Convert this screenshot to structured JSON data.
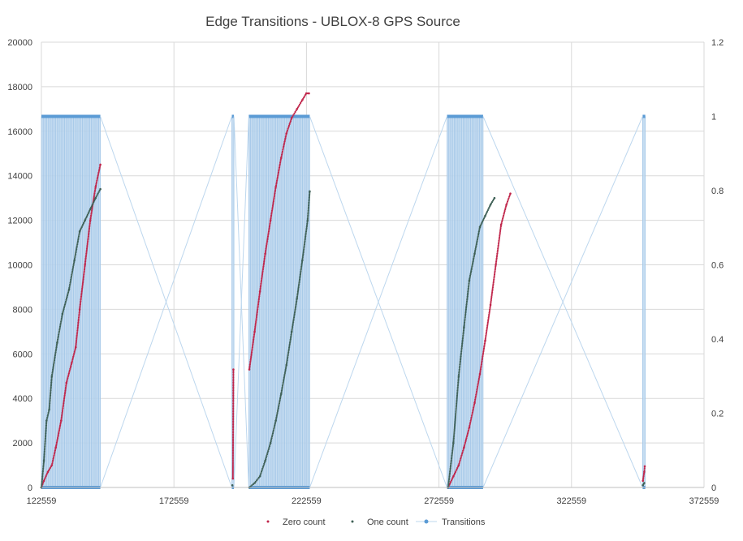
{
  "chart_data": {
    "type": "scatter",
    "title": "Edge Transitions - UBLOX-8 GPS Source",
    "xlabel": "",
    "ylabel": "",
    "y2label": "",
    "xlim": [
      122559,
      372559
    ],
    "ylim": [
      0,
      20000
    ],
    "y2lim": [
      0,
      1.2
    ],
    "x_ticks": [
      "122559",
      "172559",
      "222559",
      "272559",
      "322559",
      "372559"
    ],
    "y_ticks": [
      "0",
      "2000",
      "4000",
      "6000",
      "8000",
      "10000",
      "12000",
      "14000",
      "16000",
      "18000",
      "20000"
    ],
    "y2_ticks": [
      "0",
      "0.2",
      "0.4",
      "0.6",
      "0.8",
      "1",
      "1.2"
    ],
    "grid": true,
    "legend_position": "bottom",
    "series": [
      {
        "name": "Zero count",
        "color": "#c0254a",
        "axis": "left",
        "points": [
          [
            122559,
            0
          ],
          [
            123500,
            300
          ],
          [
            125000,
            700
          ],
          [
            126500,
            1000
          ],
          [
            128000,
            1800
          ],
          [
            130000,
            3000
          ],
          [
            132000,
            4700
          ],
          [
            134000,
            5600
          ],
          [
            135500,
            6300
          ],
          [
            137000,
            8000
          ],
          [
            139000,
            10000
          ],
          [
            141000,
            12000
          ],
          [
            143000,
            13500
          ],
          [
            144800,
            14500
          ],
          [
            194800,
            400
          ],
          [
            195000,
            5300
          ],
          [
            201000,
            5300
          ],
          [
            203000,
            7000
          ],
          [
            205000,
            8800
          ],
          [
            207000,
            10500
          ],
          [
            209000,
            12000
          ],
          [
            211000,
            13500
          ],
          [
            213000,
            14800
          ],
          [
            215000,
            15900
          ],
          [
            217000,
            16600
          ],
          [
            219000,
            17000
          ],
          [
            221000,
            17400
          ],
          [
            222500,
            17700
          ],
          [
            223500,
            17700
          ],
          [
            276000,
            0
          ],
          [
            278000,
            500
          ],
          [
            280000,
            1000
          ],
          [
            282000,
            1800
          ],
          [
            284000,
            2700
          ],
          [
            286000,
            3800
          ],
          [
            288000,
            5100
          ],
          [
            290000,
            6600
          ],
          [
            292000,
            8200
          ],
          [
            294000,
            10000
          ],
          [
            296000,
            11800
          ],
          [
            298000,
            12700
          ],
          [
            299500,
            13200
          ],
          [
            349500,
            300
          ],
          [
            350000,
            700
          ],
          [
            350200,
            950
          ]
        ]
      },
      {
        "name": "One count",
        "color": "#3f6056",
        "axis": "left",
        "points": [
          [
            122559,
            0
          ],
          [
            123500,
            1200
          ],
          [
            124500,
            3000
          ],
          [
            125500,
            3500
          ],
          [
            126500,
            5000
          ],
          [
            128500,
            6500
          ],
          [
            130500,
            7800
          ],
          [
            133000,
            8900
          ],
          [
            135000,
            10200
          ],
          [
            137000,
            11500
          ],
          [
            139000,
            12000
          ],
          [
            141000,
            12500
          ],
          [
            143000,
            13000
          ],
          [
            144800,
            13400
          ],
          [
            194600,
            100
          ],
          [
            201000,
            0
          ],
          [
            203000,
            200
          ],
          [
            205000,
            500
          ],
          [
            207000,
            1200
          ],
          [
            209000,
            2000
          ],
          [
            211000,
            3000
          ],
          [
            213000,
            4200
          ],
          [
            215000,
            5500
          ],
          [
            217000,
            7000
          ],
          [
            219000,
            8500
          ],
          [
            221000,
            10200
          ],
          [
            223000,
            12000
          ],
          [
            223800,
            13300
          ],
          [
            276000,
            0
          ],
          [
            278000,
            2000
          ],
          [
            280000,
            5000
          ],
          [
            282000,
            7200
          ],
          [
            284000,
            9300
          ],
          [
            286000,
            10500
          ],
          [
            288000,
            11700
          ],
          [
            290000,
            12200
          ],
          [
            292000,
            12700
          ],
          [
            293500,
            13000
          ],
          [
            349500,
            100
          ],
          [
            350000,
            200
          ]
        ]
      },
      {
        "name": "Transitions",
        "color": "#5b9bd5",
        "axis": "right",
        "blocks": [
          [
            122559,
            144800
          ],
          [
            194400,
            195200
          ],
          [
            200800,
            223800
          ],
          [
            275600,
            289200
          ],
          [
            349400,
            350400
          ]
        ],
        "levels": [
          0,
          1
        ]
      }
    ]
  }
}
